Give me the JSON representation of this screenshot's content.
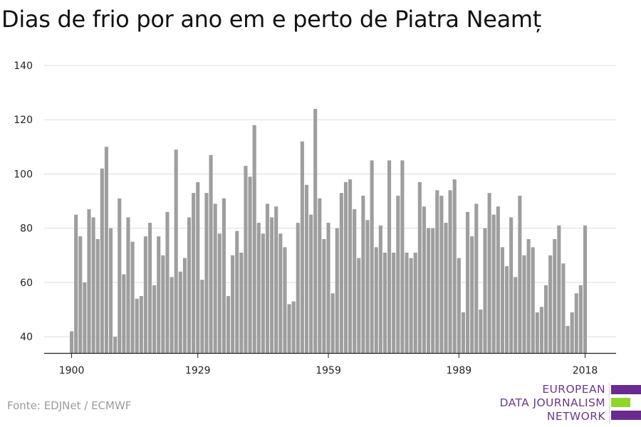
{
  "title": "Dias de frio por ano em e perto de Piatra Neamț",
  "source": "Fonte: EDJNet / ECMWF",
  "logo": {
    "line1": "EUROPEAN",
    "line2": "DATA JOURNALISM",
    "line3": "NETWORK",
    "colors": {
      "purple": "#6b2a90",
      "green": "#8ed62a"
    }
  },
  "chart_data": {
    "type": "bar",
    "title": "Dias de frio por ano em e perto de Piatra Neamț",
    "xlabel": "",
    "ylabel": "",
    "bar_color": "#9e9e9e",
    "grid": true,
    "ylim": [
      34,
      140
    ],
    "yticks": [
      40,
      60,
      80,
      100,
      120,
      140
    ],
    "xticks": [
      1900,
      1929,
      1959,
      1989,
      2018
    ],
    "years": [
      1900,
      1901,
      1902,
      1903,
      1904,
      1905,
      1906,
      1907,
      1908,
      1909,
      1910,
      1911,
      1912,
      1913,
      1914,
      1915,
      1916,
      1917,
      1918,
      1919,
      1920,
      1921,
      1922,
      1923,
      1924,
      1925,
      1926,
      1927,
      1928,
      1929,
      1930,
      1931,
      1932,
      1933,
      1934,
      1935,
      1936,
      1937,
      1938,
      1939,
      1940,
      1941,
      1942,
      1943,
      1944,
      1945,
      1946,
      1947,
      1948,
      1949,
      1950,
      1951,
      1952,
      1953,
      1954,
      1955,
      1956,
      1957,
      1958,
      1959,
      1960,
      1961,
      1962,
      1963,
      1964,
      1965,
      1966,
      1967,
      1968,
      1969,
      1970,
      1971,
      1972,
      1973,
      1974,
      1975,
      1976,
      1977,
      1978,
      1979,
      1980,
      1981,
      1982,
      1983,
      1984,
      1985,
      1986,
      1987,
      1988,
      1989,
      1990,
      1991,
      1992,
      1993,
      1994,
      1995,
      1996,
      1997,
      1998,
      1999,
      2000,
      2001,
      2002,
      2003,
      2004,
      2005,
      2006,
      2007,
      2008,
      2009,
      2010,
      2011,
      2012,
      2013,
      2014,
      2015,
      2016,
      2017,
      2018
    ],
    "values": [
      42,
      85,
      77,
      60,
      87,
      84,
      76,
      102,
      110,
      80,
      40,
      91,
      63,
      84,
      75,
      54,
      55,
      77,
      82,
      59,
      77,
      70,
      86,
      62,
      109,
      64,
      69,
      84,
      93,
      97,
      61,
      93,
      107,
      89,
      78,
      91,
      55,
      70,
      79,
      71,
      103,
      99,
      118,
      82,
      78,
      89,
      84,
      88,
      78,
      73,
      52,
      53,
      82,
      112,
      96,
      85,
      124,
      91,
      76,
      82,
      56,
      80,
      93,
      97,
      98,
      87,
      69,
      92,
      83,
      105,
      73,
      81,
      71,
      105,
      71,
      92,
      105,
      71,
      69,
      71,
      97,
      88,
      80,
      80,
      94,
      92,
      82,
      94,
      98,
      69,
      49,
      86,
      77,
      89,
      50,
      80,
      93,
      85,
      88,
      73,
      66,
      84,
      62,
      92,
      70,
      76,
      73,
      49,
      51,
      59,
      70,
      76,
      81,
      67,
      44,
      49,
      56,
      59,
      81
    ]
  }
}
